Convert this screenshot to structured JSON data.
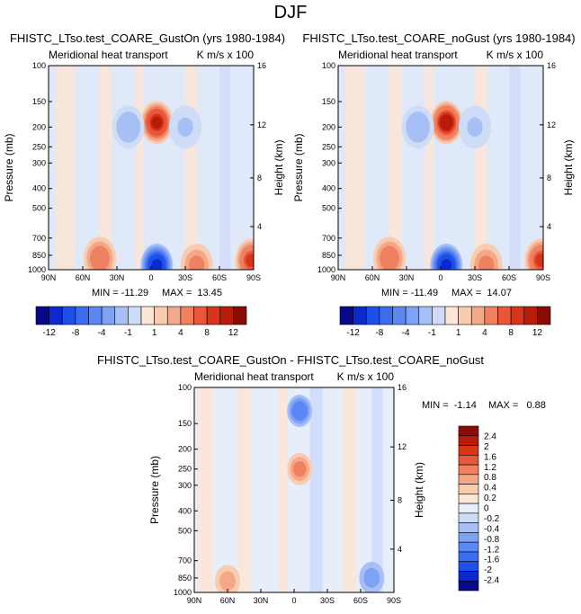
{
  "page": {
    "title": "DJF"
  },
  "colors": {
    "neg": [
      "#08088a",
      "#0a2ad0",
      "#1e4fe6",
      "#3a6cf0",
      "#5b88f2",
      "#7fa3f4",
      "#a6c0f6",
      "#cfdcf8"
    ],
    "zero": "#e8f0fb",
    "pos": [
      "#fbe6d8",
      "#f8ccb0",
      "#f4a888",
      "#ef8060",
      "#e8573a",
      "#da3418",
      "#b81b08",
      "#8a0c04"
    ]
  },
  "chart_data": [
    {
      "type": "contour",
      "title": "FHISTC_LTso.test_COARE_GustOn (yrs 1980-1984)",
      "subtitle_left": "Meridional heat transport",
      "subtitle_right": "K m/s x 100",
      "ylabel": "Pressure (mb)",
      "ylabel_right": "Height (km)",
      "x_ticks": [
        "90N",
        "60N",
        "30N",
        "0",
        "30S",
        "60S",
        "90S"
      ],
      "y_ticks": [
        "100",
        "150",
        "200",
        "250",
        "300",
        "400",
        "500",
        "700",
        "850",
        "1000"
      ],
      "y_ticks_right": [
        "16",
        "12",
        "8",
        "4"
      ],
      "min_label": "MIN = -11.29",
      "max_label": "MAX =  13.45",
      "features": [
        {
          "lat": -5,
          "p": 190,
          "value": 11
        },
        {
          "lat": -5,
          "p": 950,
          "value": -11.29
        },
        {
          "lat": 45,
          "p": 880,
          "value": 6
        },
        {
          "lat": -40,
          "p": 950,
          "value": 5
        },
        {
          "lat": -88,
          "p": 900,
          "value": 9
        },
        {
          "lat": 20,
          "p": 200,
          "value": -2
        },
        {
          "lat": -30,
          "p": 200,
          "value": -1.5
        }
      ]
    },
    {
      "type": "contour",
      "title": "FHISTC_LTso.test_COARE_noGust (yrs 1980-1984)",
      "subtitle_left": "Meridional heat transport",
      "subtitle_right": "K m/s x 100",
      "ylabel": "Pressure (mb)",
      "ylabel_right": "Height (km)",
      "x_ticks": [
        "90N",
        "60N",
        "30N",
        "0",
        "30S",
        "60S",
        "90S"
      ],
      "y_ticks": [
        "100",
        "150",
        "200",
        "250",
        "300",
        "400",
        "500",
        "700",
        "850",
        "1000"
      ],
      "y_ticks_right": [
        "16",
        "12",
        "8",
        "4"
      ],
      "min_label": "MIN = -11.49",
      "max_label": "MAX =  14.07",
      "features": [
        {
          "lat": -5,
          "p": 190,
          "value": 12
        },
        {
          "lat": -5,
          "p": 950,
          "value": -11.49
        },
        {
          "lat": 45,
          "p": 880,
          "value": 6
        },
        {
          "lat": -40,
          "p": 950,
          "value": 5
        },
        {
          "lat": -88,
          "p": 900,
          "value": 9
        },
        {
          "lat": 20,
          "p": 200,
          "value": -2
        },
        {
          "lat": -30,
          "p": 200,
          "value": -1.5
        }
      ]
    },
    {
      "type": "contour",
      "title": "FHISTC_LTso.test_COARE_GustOn - FHISTC_LTso.test_COARE_noGust",
      "subtitle_left": "Meridional heat transport",
      "subtitle_right": "K m/s x 100",
      "ylabel": "Pressure (mb)",
      "ylabel_right": "Height (km)",
      "x_ticks": [
        "90N",
        "60N",
        "30N",
        "0",
        "30S",
        "60S",
        "90S"
      ],
      "y_ticks": [
        "100",
        "150",
        "200",
        "250",
        "300",
        "400",
        "500",
        "700",
        "850",
        "1000"
      ],
      "y_ticks_right": [
        "16",
        "12",
        "8",
        "4"
      ],
      "min_label": "MIN =  -1.14",
      "max_label": "MAX =   0.88",
      "features": [
        {
          "lat": -5,
          "p": 130,
          "value": -1.14
        },
        {
          "lat": -5,
          "p": 250,
          "value": 0.88
        },
        {
          "lat": 60,
          "p": 880,
          "value": 0.6
        },
        {
          "lat": -70,
          "p": 850,
          "value": -0.6
        }
      ]
    }
  ],
  "colorbars": {
    "main": {
      "labels": [
        "-12",
        "-8",
        "-4",
        "-1",
        "1",
        "4",
        "8",
        "12"
      ]
    },
    "diff": {
      "labels": [
        "2.4",
        "2",
        "1.6",
        "1.2",
        "0.8",
        "0.4",
        "0.2",
        "0",
        "-0.2",
        "-0.4",
        "-0.8",
        "-1.2",
        "-1.6",
        "-2",
        "-2.4"
      ]
    }
  }
}
